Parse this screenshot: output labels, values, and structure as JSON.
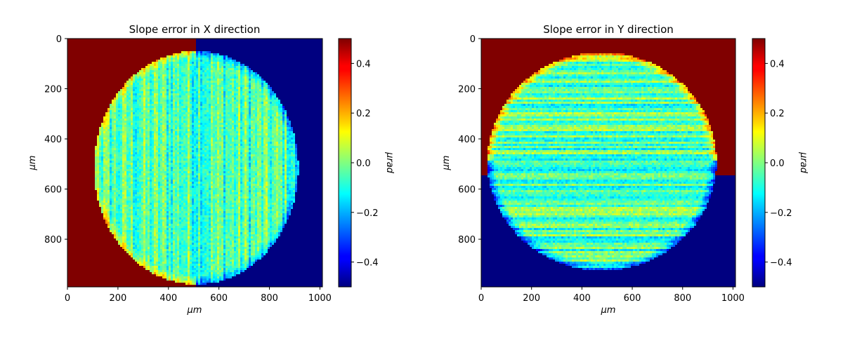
{
  "chart_data": [
    {
      "type": "heatmap",
      "title": "Slope error in X direction",
      "xlabel": "μm",
      "ylabel": "μm",
      "colorbar_label": "μrad",
      "colormap": "jet",
      "x_ticks": [
        0,
        200,
        400,
        600,
        800,
        1000
      ],
      "y_ticks": [
        0,
        200,
        400,
        600,
        800
      ],
      "xlim": [
        0,
        1010
      ],
      "ylim": [
        990,
        0
      ],
      "clim": [
        -0.5,
        0.5
      ],
      "colorbar_ticks": [
        0.4,
        0.2,
        0.0,
        -0.2,
        -0.4
      ],
      "colorbar_tick_labels": [
        "0.4",
        "0.2",
        "0.0",
        "−0.2",
        "−0.4"
      ],
      "aperture": {
        "center": [
          510,
          515
        ],
        "radius_x": 405,
        "radius_y": 465
      },
      "background_left": 0.5,
      "background_right": -0.5,
      "interior_mean": -0.05,
      "texture": "vertical-streaks"
    },
    {
      "type": "heatmap",
      "title": "Slope error in Y direction",
      "xlabel": "μm",
      "ylabel": "μm",
      "colorbar_label": "μrad",
      "colormap": "jet",
      "x_ticks": [
        0,
        200,
        400,
        600,
        800,
        1000
      ],
      "y_ticks": [
        0,
        200,
        400,
        600,
        800
      ],
      "xlim": [
        0,
        1010
      ],
      "ylim": [
        990,
        0
      ],
      "clim": [
        -0.5,
        0.5
      ],
      "colorbar_ticks": [
        0.4,
        0.2,
        0.0,
        -0.2,
        -0.4
      ],
      "colorbar_tick_labels": [
        "0.4",
        "0.2",
        "0.0",
        "−0.2",
        "−0.4"
      ],
      "aperture": {
        "center": [
          480,
          490
        ],
        "radius_x": 455,
        "radius_y": 435
      },
      "background_top": 0.5,
      "background_bottom": -0.5,
      "interior_mean": -0.05,
      "texture": "horizontal-streaks"
    }
  ]
}
